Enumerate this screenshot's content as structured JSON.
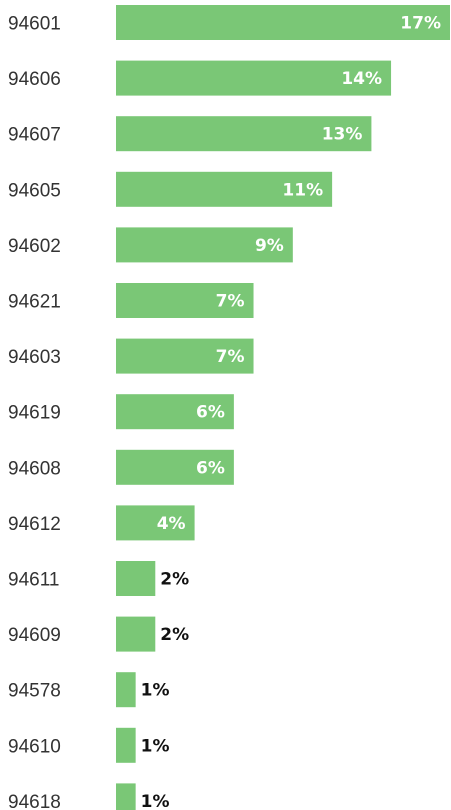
{
  "chart_data": {
    "type": "bar",
    "orientation": "horizontal",
    "categories": [
      "94601",
      "94606",
      "94607",
      "94605",
      "94602",
      "94621",
      "94603",
      "94619",
      "94608",
      "94612",
      "94611",
      "94609",
      "94578",
      "94610",
      "94618"
    ],
    "values": [
      17,
      14,
      13,
      11,
      9,
      7,
      7,
      6,
      6,
      4,
      2,
      2,
      1,
      1,
      1
    ],
    "data_labels": [
      "17%",
      "14%",
      "13%",
      "11%",
      "9%",
      "7%",
      "7%",
      "6%",
      "6%",
      "4%",
      "2%",
      "2%",
      "1%",
      "1%",
      "1%"
    ],
    "value_unit": "%",
    "xlim": [
      0,
      17
    ],
    "title": "",
    "xlabel": "",
    "ylabel": "",
    "grid": false,
    "legend": "none",
    "bar_color": "#7ac776"
  }
}
